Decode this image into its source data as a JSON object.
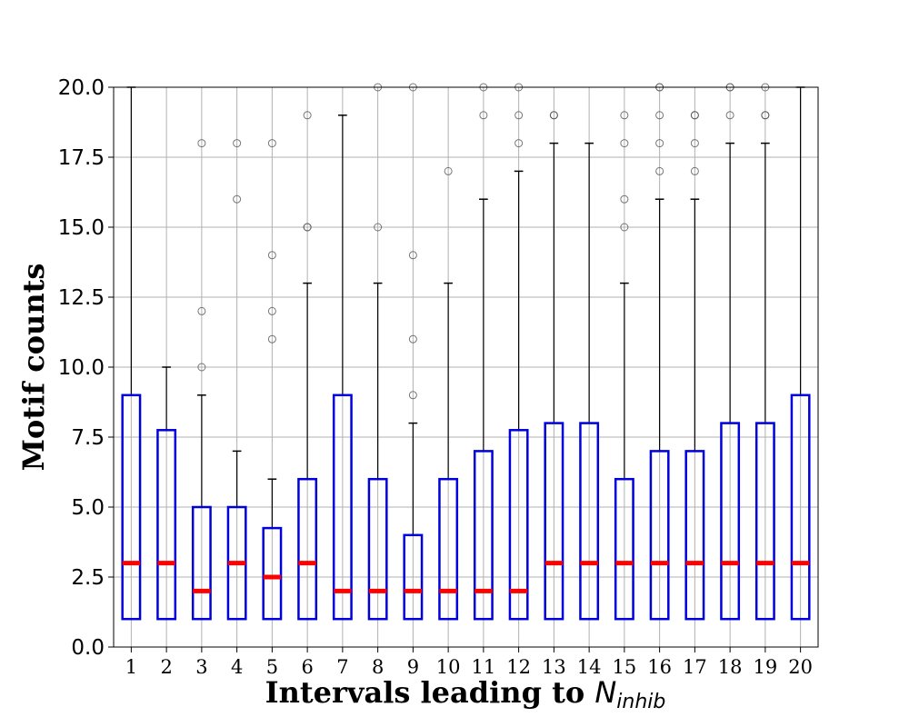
{
  "chart_data": {
    "type": "box",
    "xlabel": "Intervals leading to",
    "xlabel_math": "N",
    "xlabel_sub": "inhib",
    "ylabel": "Motif counts",
    "ylim": [
      0,
      20
    ],
    "yticks": [
      "0.0",
      "2.5",
      "5.0",
      "7.5",
      "10.0",
      "12.5",
      "15.0",
      "17.5",
      "20.0"
    ],
    "grid": true,
    "colors": {
      "box": "#0000dd",
      "median": "#ff0000",
      "whisker": "#000000",
      "flier": "#555555"
    },
    "categories": [
      "1",
      "2",
      "3",
      "4",
      "5",
      "6",
      "7",
      "8",
      "9",
      "10",
      "11",
      "12",
      "13",
      "14",
      "15",
      "16",
      "17",
      "18",
      "19",
      "20"
    ],
    "boxes": [
      {
        "q1": 1,
        "median": 3,
        "q3": 9,
        "whislo": 1,
        "whishi": 20,
        "fliers": []
      },
      {
        "q1": 1,
        "median": 3,
        "q3": 7.75,
        "whislo": 1,
        "whishi": 10,
        "fliers": []
      },
      {
        "q1": 1,
        "median": 2,
        "q3": 5,
        "whislo": 1,
        "whishi": 9,
        "fliers": [
          10,
          12,
          18
        ]
      },
      {
        "q1": 1,
        "median": 3,
        "q3": 5,
        "whislo": 1,
        "whishi": 7,
        "fliers": [
          16,
          18
        ]
      },
      {
        "q1": 1,
        "median": 2.5,
        "q3": 4.25,
        "whislo": 1,
        "whishi": 6,
        "fliers": [
          11,
          12,
          14,
          18
        ]
      },
      {
        "q1": 1,
        "median": 3,
        "q3": 6,
        "whislo": 1,
        "whishi": 13,
        "fliers": [
          15,
          15,
          19
        ]
      },
      {
        "q1": 1,
        "median": 2,
        "q3": 9,
        "whislo": 1,
        "whishi": 19,
        "fliers": []
      },
      {
        "q1": 1,
        "median": 2,
        "q3": 6,
        "whislo": 1,
        "whishi": 13,
        "fliers": [
          15,
          20
        ]
      },
      {
        "q1": 1,
        "median": 2,
        "q3": 4,
        "whislo": 1,
        "whishi": 8,
        "fliers": [
          9,
          11,
          14,
          20
        ]
      },
      {
        "q1": 1,
        "median": 2,
        "q3": 6,
        "whislo": 1,
        "whishi": 13,
        "fliers": [
          17
        ]
      },
      {
        "q1": 1,
        "median": 2,
        "q3": 7,
        "whislo": 1,
        "whishi": 16,
        "fliers": [
          19,
          20
        ]
      },
      {
        "q1": 1,
        "median": 2,
        "q3": 7.75,
        "whislo": 1,
        "whishi": 17,
        "fliers": [
          18,
          19,
          20
        ]
      },
      {
        "q1": 1,
        "median": 3,
        "q3": 8,
        "whislo": 1,
        "whishi": 18,
        "fliers": [
          19,
          19
        ]
      },
      {
        "q1": 1,
        "median": 3,
        "q3": 8,
        "whislo": 1,
        "whishi": 18,
        "fliers": []
      },
      {
        "q1": 1,
        "median": 3,
        "q3": 6,
        "whislo": 1,
        "whishi": 13,
        "fliers": [
          15,
          16,
          18,
          19
        ]
      },
      {
        "q1": 1,
        "median": 3,
        "q3": 7,
        "whislo": 1,
        "whishi": 16,
        "fliers": [
          17,
          18,
          19,
          20,
          20
        ]
      },
      {
        "q1": 1,
        "median": 3,
        "q3": 7,
        "whislo": 1,
        "whishi": 16,
        "fliers": [
          17,
          18,
          19,
          19
        ]
      },
      {
        "q1": 1,
        "median": 3,
        "q3": 8,
        "whislo": 1,
        "whishi": 18,
        "fliers": [
          19,
          20,
          20
        ]
      },
      {
        "q1": 1,
        "median": 3,
        "q3": 8,
        "whislo": 1,
        "whishi": 18,
        "fliers": [
          19,
          19,
          20
        ]
      },
      {
        "q1": 1,
        "median": 3,
        "q3": 9,
        "whislo": 1,
        "whishi": 20,
        "fliers": []
      }
    ]
  }
}
